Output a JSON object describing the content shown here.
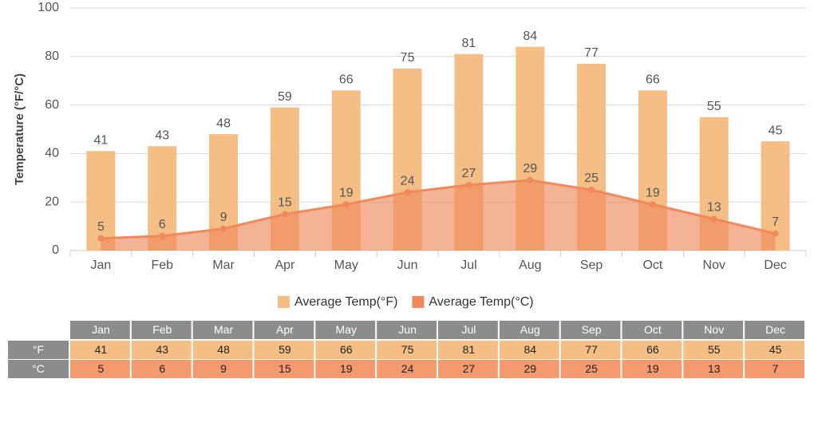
{
  "chart_data": {
    "type": "bar",
    "y_label": "Temperature (°F/°C)",
    "categories": [
      "Jan",
      "Feb",
      "Mar",
      "Apr",
      "May",
      "Jun",
      "Jul",
      "Aug",
      "Sep",
      "Oct",
      "Nov",
      "Dec"
    ],
    "series": [
      {
        "name": "Average Temp(°F)",
        "type": "bar",
        "color": "#f5be85",
        "values": [
          41,
          43,
          48,
          59,
          66,
          75,
          81,
          84,
          77,
          66,
          55,
          45
        ]
      },
      {
        "name": "Average Temp(°C)",
        "type": "area",
        "color": "#f08a5d",
        "values": [
          5,
          6,
          9,
          15,
          19,
          24,
          27,
          29,
          25,
          19,
          13,
          7
        ]
      }
    ],
    "ylim": [
      0,
      100
    ],
    "yticks": [
      0,
      20,
      40,
      60,
      80,
      100
    ],
    "grid": true,
    "table": {
      "row_labels": [
        "°F",
        "°C"
      ]
    }
  }
}
